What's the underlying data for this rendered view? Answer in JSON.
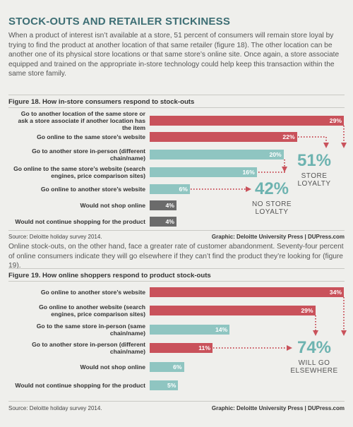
{
  "title": "STOCK-OUTS AND RETAILER STICKINESS",
  "paragraphs": [
    "When a product of interest isn’t available at a store, 51 percent of consumers will remain store loyal by trying to find the product at another location of that same retailer (figure 18). The other location can be another one of its physical store locations or that same store’s online site. Once again, a store associate equipped and trained on the appropriate in-store technology could help keep this transaction within the same store family.",
    "Online stock-outs, on the other hand, face a greater rate of customer abandonment. Seventy-four percent of online consumers indicate they will go elsewhere if they can’t find the product they’re looking for (figure 19)."
  ],
  "chart_data": [
    {
      "type": "bar",
      "orientation": "horizontal",
      "title": "Figure 18. How in-store consumers respond to stock-outs",
      "categories": [
        "Go to another location of the same store or ask a store associate if another location has the item",
        "Go online to the same store’s website",
        "Go to another store in-person (different chain/name)",
        "Go online to the same store’s website (search engines, price comparison sites)",
        "Go online to another store’s website",
        "Would not shop online",
        "Would not continue shopping for the product"
      ],
      "values": [
        29,
        22,
        20,
        16,
        6,
        4,
        4
      ],
      "value_labels": [
        "29%",
        "22%",
        "20%",
        "16%",
        "6%",
        "4%",
        "4%"
      ],
      "colors": [
        "#c9525b",
        "#c9525b",
        "#8fc5c1",
        "#8fc5c1",
        "#8fc5c1",
        "#6b6b6b",
        "#6b6b6b"
      ],
      "annotations": [
        {
          "number": "51%",
          "text": "STORE LOYALTY"
        },
        {
          "number": "42%",
          "text": "NO STORE LOYALTY"
        }
      ],
      "source": "Source: Deloitte holiday survey 2014.",
      "credit": "Graphic: Deloitte University Press | DUPress.com"
    },
    {
      "type": "bar",
      "orientation": "horizontal",
      "title": "Figure 19. How online shoppers respond to product stock-outs",
      "categories": [
        "Go online to another store’s website",
        "Go online to another website (search engines, price comparison sites)",
        "Go to the same store in-person (same chain/name)",
        "Go to another store in-person (different chain/name)",
        "Would not shop online",
        "Would not continue shopping for the product"
      ],
      "values": [
        34,
        29,
        14,
        11,
        6,
        5
      ],
      "value_labels": [
        "34%",
        "29%",
        "14%",
        "11%",
        "6%",
        "5%"
      ],
      "colors": [
        "#c9525b",
        "#c9525b",
        "#8fc5c1",
        "#c9525b",
        "#8fc5c1",
        "#8fc5c1"
      ],
      "annotations": [
        {
          "number": "74%",
          "text": "WILL GO ELSEWHERE"
        }
      ],
      "source": "Source: Deloitte holiday survey 2014.",
      "credit": "Graphic: Deloitte University Press | DUPress.com"
    }
  ]
}
